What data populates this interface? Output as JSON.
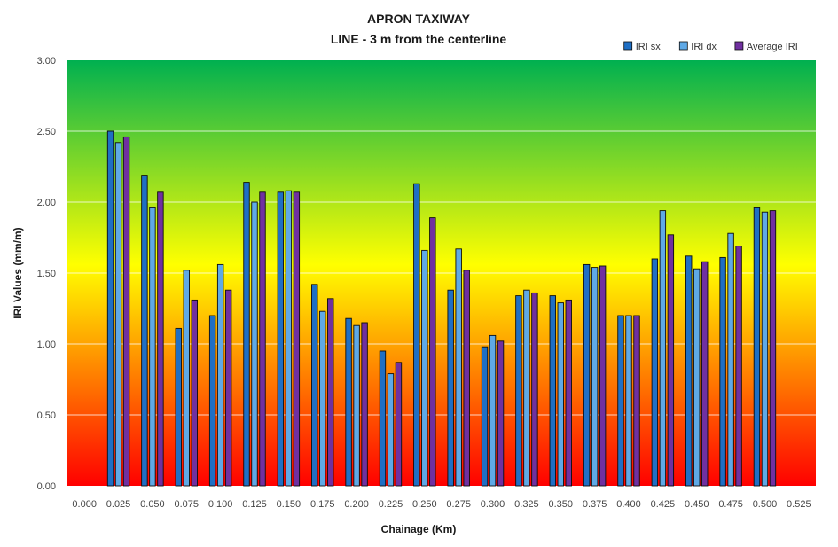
{
  "chart_data": {
    "type": "bar",
    "title": "APRON TAXIWAY",
    "subtitle": "LINE - 3 m from the centerline",
    "xlabel": "Chainage (Km)",
    "ylabel": "IRI Values (mm/m)",
    "ylim": [
      0,
      3
    ],
    "y_ticks": [
      "0.00",
      "0.50",
      "1.00",
      "1.50",
      "2.00",
      "2.50",
      "3.00"
    ],
    "grid": true,
    "legend_position": "top-right",
    "categories": [
      "0.000",
      "0.025",
      "0.050",
      "0.075",
      "0.100",
      "0.125",
      "0.150",
      "0.175",
      "0.200",
      "0.225",
      "0.250",
      "0.275",
      "0.300",
      "0.325",
      "0.350",
      "0.375",
      "0.400",
      "0.425",
      "0.450",
      "0.475",
      "0.500",
      "0.525"
    ],
    "series": [
      {
        "name": "IRI sx",
        "color": "#1f6fc4",
        "values": [
          null,
          2.5,
          2.19,
          1.11,
          1.2,
          2.14,
          2.07,
          1.42,
          1.18,
          0.95,
          2.13,
          1.38,
          0.98,
          1.34,
          1.34,
          1.56,
          1.2,
          1.6,
          1.62,
          1.61,
          1.96,
          null
        ]
      },
      {
        "name": "IRI dx",
        "color": "#5fa9e6",
        "values": [
          null,
          2.42,
          1.96,
          1.52,
          1.56,
          2.0,
          2.08,
          1.23,
          1.13,
          0.79,
          1.66,
          1.67,
          1.06,
          1.38,
          1.29,
          1.54,
          1.2,
          1.94,
          1.53,
          1.78,
          1.93,
          null
        ]
      },
      {
        "name": "Average IRI",
        "color": "#7030a0",
        "values": [
          null,
          2.46,
          2.07,
          1.31,
          1.38,
          2.07,
          2.07,
          1.32,
          1.15,
          0.87,
          1.89,
          1.52,
          1.02,
          1.36,
          1.31,
          1.55,
          1.2,
          1.77,
          1.58,
          1.69,
          1.94,
          null
        ]
      }
    ],
    "background_gradient": [
      "#00b050",
      "#ffff00",
      "#ff0000"
    ]
  }
}
